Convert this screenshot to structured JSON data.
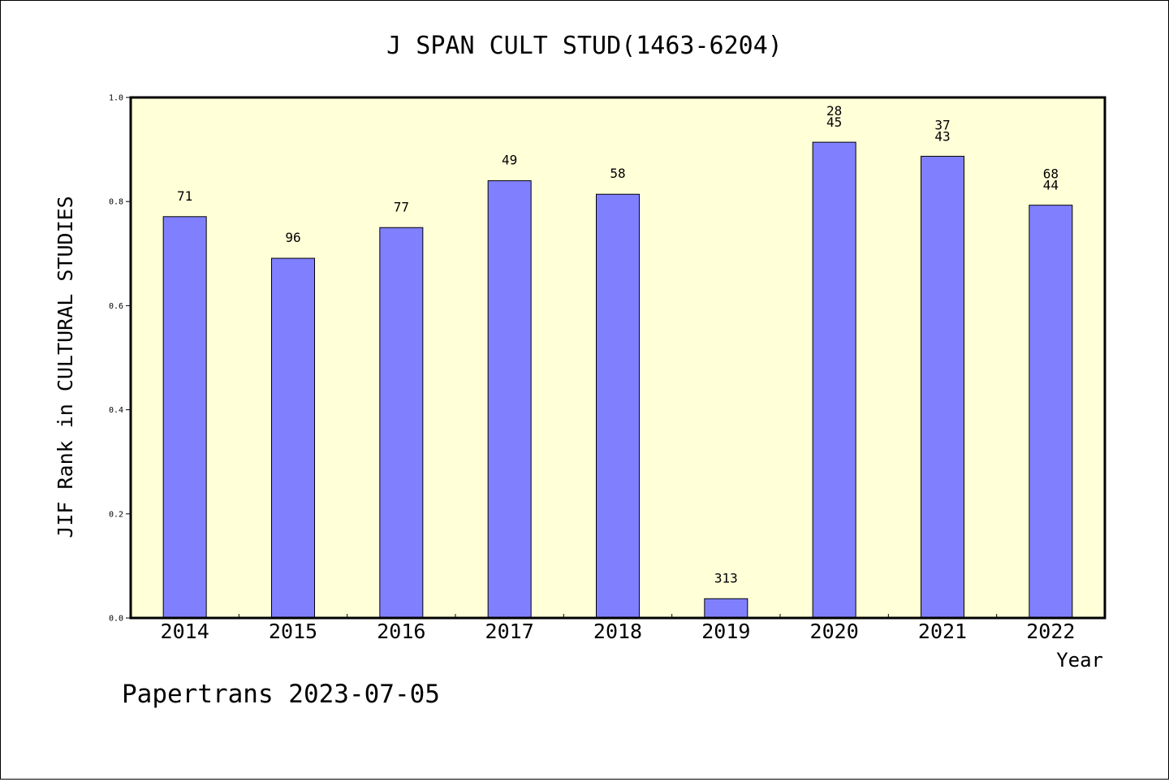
{
  "chart_data": {
    "type": "bar",
    "title": "J SPAN CULT STUD(1463-6204)",
    "xlabel": "Year",
    "ylabel": "JIF Rank in CULTURAL STUDIES",
    "categories": [
      "2014",
      "2015",
      "2016",
      "2017",
      "2018",
      "2019",
      "2020",
      "2021",
      "2022"
    ],
    "values": [
      0.771,
      0.691,
      0.75,
      0.84,
      0.814,
      0.037,
      0.914,
      0.887,
      0.793
    ],
    "data_labels": [
      [
        "71"
      ],
      [
        "96"
      ],
      [
        "77"
      ],
      [
        "49"
      ],
      [
        "58"
      ],
      [
        "313"
      ],
      [
        "28",
        "45"
      ],
      [
        "37",
        "43"
      ],
      [
        "68",
        "44"
      ]
    ],
    "ylim": [
      0,
      1.0
    ],
    "yticks": [
      "0.0",
      "0.2",
      "0.4",
      "0.6",
      "0.8",
      "1.0"
    ],
    "grid": false,
    "legend": "none",
    "colors": {
      "bar_fill": "#8080ff",
      "plot_background": "#ffffd8",
      "axis": "#000000"
    }
  },
  "footer": {
    "text": "Papertrans 2023-07-05"
  }
}
